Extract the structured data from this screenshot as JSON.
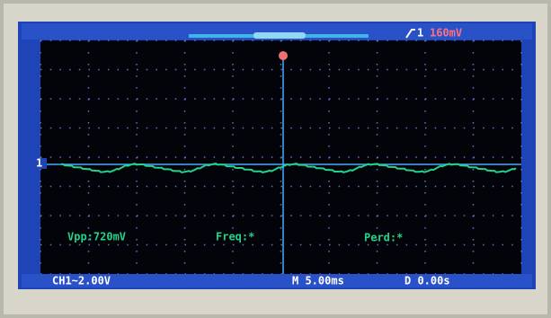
{
  "trigger": {
    "channel": "1",
    "level": "160mV"
  },
  "channel_marker": "1",
  "measurements": [
    "Vpp:720mV",
    "Freq:*",
    "Perd:*"
  ],
  "status_bar": {
    "channel": "CH1~2.00V",
    "timebase": "M 5.00ms",
    "delay": "D 0.00s"
  }
}
